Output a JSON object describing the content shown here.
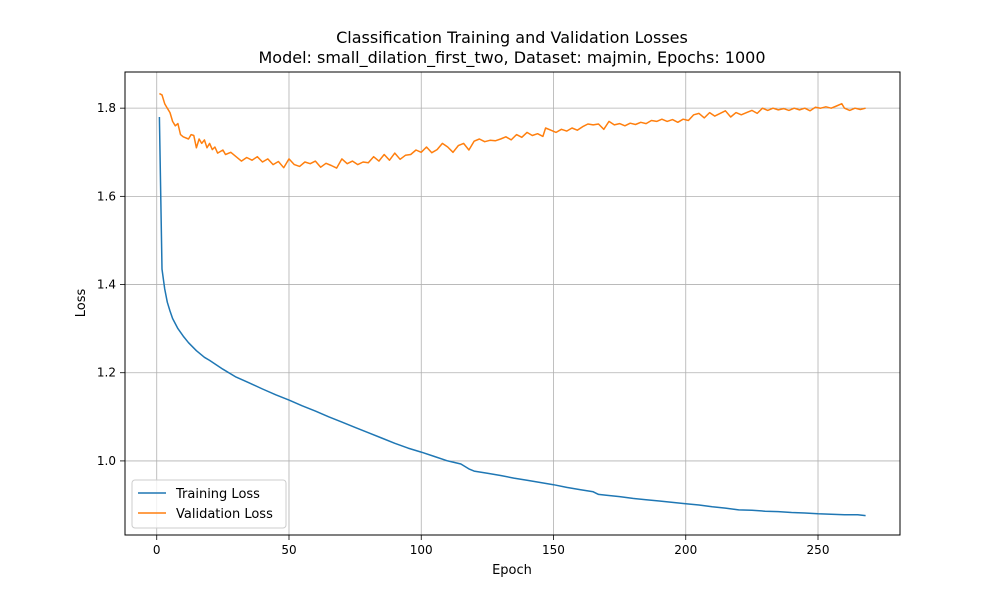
{
  "chart_data": {
    "type": "line",
    "title": "Classification Training and Validation Losses",
    "subtitle": "Model: small_dilation_first_two, Dataset: majmin, Epochs: 1000",
    "xlabel": "Epoch",
    "ylabel": "Loss",
    "xlim": [
      -12,
      281
    ],
    "ylim": [
      0.832,
      1.882
    ],
    "x_ticks": [
      0,
      50,
      100,
      150,
      200,
      250
    ],
    "y_ticks": [
      1.0,
      1.2,
      1.4,
      1.6,
      1.8
    ],
    "x_tick_labels": [
      "0",
      "50",
      "100",
      "150",
      "200",
      "250"
    ],
    "y_tick_labels": [
      "1.0",
      "1.2",
      "1.4",
      "1.6",
      "1.8"
    ],
    "grid": true,
    "legend_position": "lower-left",
    "series": [
      {
        "name": "Training Loss",
        "color": "#1f77b4",
        "points": [
          [
            1,
            1.78
          ],
          [
            2,
            1.435
          ],
          [
            3,
            1.39
          ],
          [
            4,
            1.36
          ],
          [
            5,
            1.34
          ],
          [
            6,
            1.323
          ],
          [
            8,
            1.3
          ],
          [
            10,
            1.283
          ],
          [
            12,
            1.268
          ],
          [
            15,
            1.25
          ],
          [
            18,
            1.235
          ],
          [
            20,
            1.228
          ],
          [
            25,
            1.208
          ],
          [
            30,
            1.19
          ],
          [
            35,
            1.177
          ],
          [
            40,
            1.163
          ],
          [
            45,
            1.15
          ],
          [
            50,
            1.138
          ],
          [
            55,
            1.125
          ],
          [
            60,
            1.113
          ],
          [
            65,
            1.1
          ],
          [
            70,
            1.088
          ],
          [
            75,
            1.076
          ],
          [
            80,
            1.064
          ],
          [
            85,
            1.052
          ],
          [
            90,
            1.04
          ],
          [
            95,
            1.029
          ],
          [
            100,
            1.02
          ],
          [
            105,
            1.01
          ],
          [
            110,
            1.0
          ],
          [
            115,
            0.993
          ],
          [
            118,
            0.982
          ],
          [
            120,
            0.977
          ],
          [
            125,
            0.972
          ],
          [
            130,
            0.967
          ],
          [
            135,
            0.961
          ],
          [
            140,
            0.956
          ],
          [
            145,
            0.951
          ],
          [
            150,
            0.946
          ],
          [
            155,
            0.94
          ],
          [
            160,
            0.935
          ],
          [
            165,
            0.93
          ],
          [
            167,
            0.924
          ],
          [
            170,
            0.922
          ],
          [
            175,
            0.919
          ],
          [
            180,
            0.915
          ],
          [
            185,
            0.912
          ],
          [
            190,
            0.909
          ],
          [
            195,
            0.906
          ],
          [
            200,
            0.903
          ],
          [
            205,
            0.9
          ],
          [
            210,
            0.896
          ],
          [
            215,
            0.893
          ],
          [
            220,
            0.889
          ],
          [
            225,
            0.888
          ],
          [
            230,
            0.886
          ],
          [
            235,
            0.885
          ],
          [
            240,
            0.883
          ],
          [
            245,
            0.882
          ],
          [
            250,
            0.88
          ],
          [
            255,
            0.879
          ],
          [
            260,
            0.878
          ],
          [
            265,
            0.878
          ],
          [
            268,
            0.876
          ]
        ]
      },
      {
        "name": "Validation Loss",
        "color": "#ff7f0e",
        "points": [
          [
            1,
            1.833
          ],
          [
            2,
            1.83
          ],
          [
            3,
            1.81
          ],
          [
            4,
            1.8
          ],
          [
            5,
            1.79
          ],
          [
            6,
            1.77
          ],
          [
            7,
            1.76
          ],
          [
            8,
            1.765
          ],
          [
            9,
            1.74
          ],
          [
            10,
            1.735
          ],
          [
            12,
            1.73
          ],
          [
            13,
            1.74
          ],
          [
            14,
            1.738
          ],
          [
            15,
            1.71
          ],
          [
            16,
            1.73
          ],
          [
            17,
            1.72
          ],
          [
            18,
            1.728
          ],
          [
            19,
            1.71
          ],
          [
            20,
            1.72
          ],
          [
            21,
            1.706
          ],
          [
            22,
            1.712
          ],
          [
            23,
            1.698
          ],
          [
            25,
            1.705
          ],
          [
            26,
            1.695
          ],
          [
            28,
            1.7
          ],
          [
            30,
            1.69
          ],
          [
            32,
            1.68
          ],
          [
            34,
            1.688
          ],
          [
            36,
            1.682
          ],
          [
            38,
            1.69
          ],
          [
            40,
            1.678
          ],
          [
            42,
            1.685
          ],
          [
            44,
            1.672
          ],
          [
            46,
            1.679
          ],
          [
            48,
            1.665
          ],
          [
            50,
            1.685
          ],
          [
            52,
            1.672
          ],
          [
            54,
            1.668
          ],
          [
            56,
            1.678
          ],
          [
            58,
            1.674
          ],
          [
            60,
            1.68
          ],
          [
            62,
            1.666
          ],
          [
            64,
            1.675
          ],
          [
            66,
            1.67
          ],
          [
            68,
            1.664
          ],
          [
            70,
            1.685
          ],
          [
            72,
            1.674
          ],
          [
            74,
            1.68
          ],
          [
            76,
            1.672
          ],
          [
            78,
            1.678
          ],
          [
            80,
            1.676
          ],
          [
            82,
            1.69
          ],
          [
            84,
            1.68
          ],
          [
            86,
            1.695
          ],
          [
            88,
            1.682
          ],
          [
            90,
            1.698
          ],
          [
            92,
            1.684
          ],
          [
            94,
            1.693
          ],
          [
            96,
            1.695
          ],
          [
            98,
            1.705
          ],
          [
            100,
            1.7
          ],
          [
            102,
            1.712
          ],
          [
            104,
            1.699
          ],
          [
            106,
            1.706
          ],
          [
            108,
            1.72
          ],
          [
            110,
            1.712
          ],
          [
            112,
            1.7
          ],
          [
            114,
            1.715
          ],
          [
            116,
            1.72
          ],
          [
            118,
            1.705
          ],
          [
            120,
            1.725
          ],
          [
            122,
            1.73
          ],
          [
            124,
            1.724
          ],
          [
            126,
            1.727
          ],
          [
            128,
            1.726
          ],
          [
            130,
            1.73
          ],
          [
            132,
            1.735
          ],
          [
            134,
            1.728
          ],
          [
            136,
            1.74
          ],
          [
            138,
            1.734
          ],
          [
            140,
            1.745
          ],
          [
            142,
            1.738
          ],
          [
            144,
            1.742
          ],
          [
            146,
            1.736
          ],
          [
            147,
            1.755
          ],
          [
            149,
            1.75
          ],
          [
            151,
            1.745
          ],
          [
            153,
            1.752
          ],
          [
            155,
            1.748
          ],
          [
            157,
            1.755
          ],
          [
            159,
            1.75
          ],
          [
            161,
            1.758
          ],
          [
            163,
            1.764
          ],
          [
            165,
            1.762
          ],
          [
            167,
            1.764
          ],
          [
            169,
            1.752
          ],
          [
            171,
            1.77
          ],
          [
            173,
            1.762
          ],
          [
            175,
            1.765
          ],
          [
            177,
            1.76
          ],
          [
            179,
            1.766
          ],
          [
            181,
            1.763
          ],
          [
            183,
            1.768
          ],
          [
            185,
            1.765
          ],
          [
            187,
            1.772
          ],
          [
            189,
            1.77
          ],
          [
            191,
            1.775
          ],
          [
            193,
            1.77
          ],
          [
            195,
            1.774
          ],
          [
            197,
            1.768
          ],
          [
            199,
            1.775
          ],
          [
            201,
            1.772
          ],
          [
            203,
            1.785
          ],
          [
            205,
            1.788
          ],
          [
            207,
            1.778
          ],
          [
            209,
            1.79
          ],
          [
            211,
            1.782
          ],
          [
            213,
            1.788
          ],
          [
            215,
            1.794
          ],
          [
            217,
            1.78
          ],
          [
            219,
            1.79
          ],
          [
            221,
            1.785
          ],
          [
            223,
            1.79
          ],
          [
            225,
            1.795
          ],
          [
            227,
            1.788
          ],
          [
            229,
            1.8
          ],
          [
            231,
            1.795
          ],
          [
            233,
            1.8
          ],
          [
            235,
            1.796
          ],
          [
            237,
            1.799
          ],
          [
            239,
            1.795
          ],
          [
            241,
            1.8
          ],
          [
            243,
            1.796
          ],
          [
            245,
            1.8
          ],
          [
            247,
            1.794
          ],
          [
            249,
            1.802
          ],
          [
            251,
            1.8
          ],
          [
            253,
            1.803
          ],
          [
            255,
            1.8
          ],
          [
            257,
            1.805
          ],
          [
            259,
            1.81
          ],
          [
            260,
            1.8
          ],
          [
            262,
            1.795
          ],
          [
            264,
            1.8
          ],
          [
            266,
            1.797
          ],
          [
            268,
            1.8
          ]
        ]
      }
    ]
  }
}
